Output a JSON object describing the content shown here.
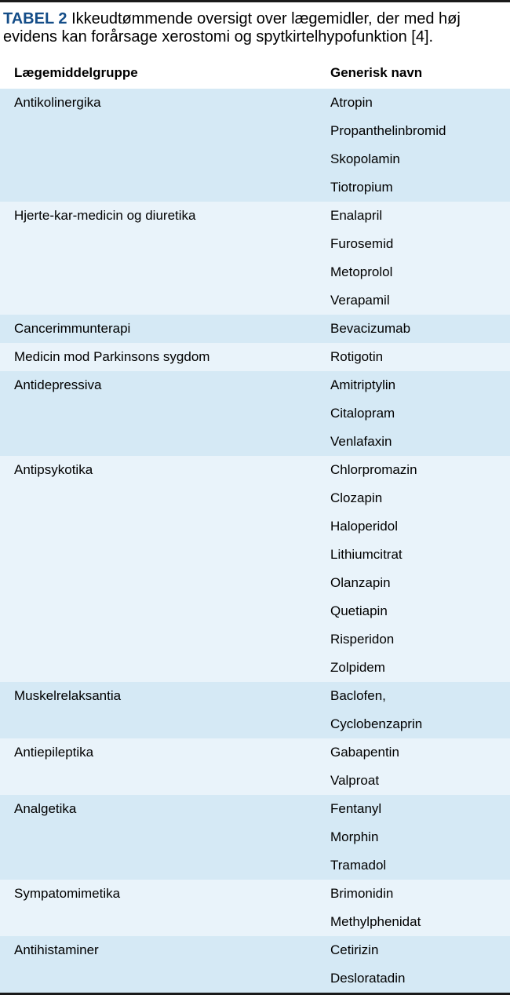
{
  "caption": {
    "label": "TABEL 2",
    "text": "Ikkeudtømmende oversigt over lægemidler, der med høj evidens kan forårsage xerostomi og spytkirtelhypofunktion [4]."
  },
  "columns": {
    "group": "Lægemiddelgruppe",
    "drug": "Generisk navn"
  },
  "groups": [
    {
      "tint": "a",
      "name": "Antikolinergika",
      "drugs": [
        "Atropin",
        "Propanthelinbromid",
        "Skopolamin",
        "Tiotropium"
      ]
    },
    {
      "tint": "b",
      "name": "Hjerte-kar-medicin og diuretika",
      "drugs": [
        "Enalapril",
        "Furosemid",
        "Metoprolol",
        "Verapamil"
      ]
    },
    {
      "tint": "a",
      "name": "Cancerimmunterapi",
      "drugs": [
        "Bevacizumab"
      ]
    },
    {
      "tint": "b",
      "name": "Medicin mod Parkinsons sygdom",
      "drugs": [
        "Rotigotin"
      ]
    },
    {
      "tint": "a",
      "name": "Antidepressiva",
      "drugs": [
        "Amitriptylin",
        "Citalopram",
        "Venlafaxin"
      ]
    },
    {
      "tint": "b",
      "name": "Antipsykotika",
      "drugs": [
        "Chlorpromazin",
        "Clozapin",
        "Haloperidol",
        "Lithiumcitrat",
        "Olanzapin",
        "Quetiapin",
        "Risperidon",
        "Zolpidem"
      ]
    },
    {
      "tint": "a",
      "name": "Muskelrelaksantia",
      "drugs": [
        "Baclofen,",
        "Cyclobenzaprin"
      ]
    },
    {
      "tint": "b",
      "name": "Antiepileptika",
      "drugs": [
        "Gabapentin",
        "Valproat"
      ]
    },
    {
      "tint": "a",
      "name": "Analgetika",
      "drugs": [
        "Fentanyl",
        "Morphin",
        "Tramadol"
      ]
    },
    {
      "tint": "b",
      "name": "Sympatomimetika",
      "drugs": [
        "Brimonidin",
        "Methylphenidat"
      ]
    },
    {
      "tint": "a",
      "name": "Antihistaminer",
      "drugs": [
        "Cetirizin",
        "Desloratadin"
      ]
    }
  ],
  "styles": {
    "tint_a": "#d5e9f5",
    "tint_b": "#e9f3fa",
    "border_color": "#1a1a1a",
    "accent_color": "#144d88",
    "font_size": 17,
    "caption_font_size": 20
  }
}
